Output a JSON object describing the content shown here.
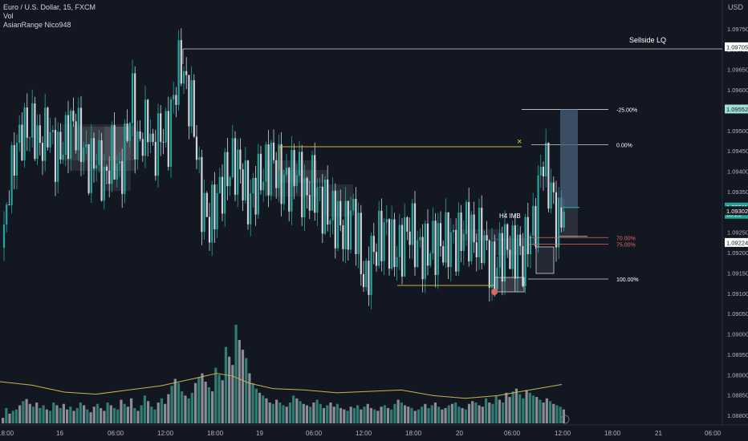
{
  "header": {
    "symbol": "Euro / U.S. Dollar, 15, FXCM",
    "indicator_vol": "Vol",
    "indicator_custom": "AsianRange Nico948",
    "currency": "USD"
  },
  "colors": {
    "background": "#131722",
    "up": "#26a69a",
    "down": "#d1d4dc",
    "axis_text": "#b2b5be",
    "volume_up": "#2e7d74",
    "volume_down": "#8a8d96",
    "volume_ma": "#c8b44f",
    "fib": "#d1d4dc",
    "fib_red": "#e06666",
    "highlight_line": "#c8b44f",
    "tp_box": "#4a6078"
  },
  "chart_data": {
    "type": "candlestick",
    "price_axis": {
      "ylim": [
        1.0879,
        1.0977
      ],
      "ticks": [
        "1.09750",
        "1.09700",
        "1.09650",
        "1.09600",
        "1.09550",
        "1.09500",
        "1.09450",
        "1.09400",
        "1.09350",
        "1.09300",
        "1.09250",
        "1.09200",
        "1.09150",
        "1.09100",
        "1.09050",
        "1.09000",
        "1.08950",
        "1.08900",
        "1.08850",
        "1.08800"
      ],
      "tick_values": [
        1.0975,
        1.097,
        1.0965,
        1.096,
        1.0955,
        1.095,
        1.0945,
        1.094,
        1.0935,
        1.093,
        1.0925,
        1.092,
        1.0915,
        1.091,
        1.0905,
        1.09,
        1.0895,
        1.089,
        1.0885,
        1.088
      ],
      "labels": [
        {
          "text": "1.09705",
          "value": 1.09705,
          "style": "white"
        },
        {
          "text": "1.09552",
          "value": 1.09552,
          "style": "teal"
        },
        {
          "text": "1.09311",
          "sub": "03:25",
          "value": 1.09311,
          "style": "green"
        },
        {
          "text": "1.09302",
          "value": 1.09302,
          "style": "dark"
        },
        {
          "text": "1.09224",
          "value": 1.09224,
          "style": "white"
        }
      ]
    },
    "time_axis": {
      "ticks": [
        "18:00",
        "16",
        "06:00",
        "12:00",
        "18:00",
        "19",
        "06:00",
        "12:00",
        "18:00",
        "20",
        "06:00",
        "12:00",
        "18:00",
        "21",
        "06:00"
      ]
    },
    "close_path": [
      [
        0,
        1.0912
      ],
      [
        10,
        1.0935
      ],
      [
        20,
        1.0946
      ],
      [
        30,
        1.095
      ],
      [
        40,
        1.0951
      ],
      [
        50,
        1.0946
      ],
      [
        60,
        1.0951
      ],
      [
        70,
        1.0943
      ],
      [
        80,
        1.0947
      ],
      [
        90,
        1.0952
      ],
      [
        100,
        1.0948
      ],
      [
        110,
        1.0941
      ],
      [
        120,
        1.0944
      ],
      [
        130,
        1.0937
      ],
      [
        140,
        1.0945
      ],
      [
        150,
        1.0938
      ],
      [
        160,
        1.0952
      ],
      [
        165,
        1.0958
      ],
      [
        170,
        1.0945
      ],
      [
        180,
        1.095
      ],
      [
        185,
        1.0953
      ],
      [
        190,
        1.0943
      ],
      [
        200,
        1.095
      ],
      [
        210,
        1.0948
      ],
      [
        215,
        1.0957
      ],
      [
        220,
        1.0962
      ],
      [
        225,
        1.0968
      ],
      [
        232,
        1.096
      ],
      [
        240,
        1.0955
      ],
      [
        245,
        1.0945
      ],
      [
        250,
        1.0933
      ],
      [
        260,
        1.0927
      ],
      [
        270,
        1.0933
      ],
      [
        280,
        1.0938
      ],
      [
        290,
        1.0942
      ],
      [
        300,
        1.094
      ],
      [
        310,
        1.0932
      ],
      [
        320,
        1.0937
      ],
      [
        330,
        1.094
      ],
      [
        340,
        1.0943
      ],
      [
        350,
        1.0938
      ],
      [
        360,
        1.0937
      ],
      [
        370,
        1.0941
      ],
      [
        380,
        1.0933
      ],
      [
        390,
        1.0937
      ],
      [
        400,
        1.0932
      ],
      [
        410,
        1.093
      ],
      [
        420,
        1.0928
      ],
      [
        430,
        1.0925
      ],
      [
        440,
        1.093
      ],
      [
        445,
        1.0925
      ],
      [
        450,
        1.0918
      ],
      [
        455,
        1.091
      ],
      [
        460,
        1.0918
      ],
      [
        470,
        1.0922
      ],
      [
        480,
        1.0926
      ],
      [
        490,
        1.092
      ],
      [
        500,
        1.0921
      ],
      [
        510,
        1.0927
      ],
      [
        520,
        1.0921
      ],
      [
        530,
        1.092
      ],
      [
        540,
        1.0922
      ],
      [
        550,
        1.0922
      ],
      [
        560,
        1.0923
      ],
      [
        570,
        1.0922
      ],
      [
        580,
        1.0927
      ],
      [
        590,
        1.0923
      ],
      [
        600,
        1.0924
      ],
      [
        610,
        1.0918
      ],
      [
        615,
        1.0914
      ],
      [
        620,
        1.0918
      ],
      [
        630,
        1.0922
      ],
      [
        640,
        1.0919
      ],
      [
        645,
        1.0922
      ],
      [
        650,
        1.0917
      ],
      [
        655,
        1.0922
      ],
      [
        660,
        1.0925
      ],
      [
        665,
        1.0926
      ],
      [
        670,
        1.0932
      ],
      [
        675,
        1.0945
      ],
      [
        680,
        1.094
      ],
      [
        685,
        1.0936
      ],
      [
        690,
        1.0932
      ],
      [
        695,
        1.0925
      ],
      [
        700,
        1.0931
      ],
      [
        703,
        1.0931
      ]
    ],
    "volume": {
      "ylim": [
        0,
        150
      ],
      "bars": [
        8,
        22,
        14,
        18,
        20,
        26,
        32,
        35,
        28,
        24,
        30,
        22,
        26,
        20,
        18,
        30,
        26,
        22,
        28,
        20,
        24,
        18,
        22,
        30,
        26,
        20,
        16,
        24,
        28,
        22,
        18,
        30,
        26,
        22,
        20,
        34,
        28,
        24,
        36,
        22,
        18,
        26,
        40,
        32,
        24,
        20,
        30,
        36,
        28,
        42,
        54,
        64,
        58,
        46,
        40,
        36,
        44,
        58,
        66,
        72,
        60,
        52,
        46,
        80,
        70,
        62,
        110,
        96,
        84,
        142,
        120,
        106,
        94,
        72,
        58,
        50,
        44,
        40,
        36,
        30,
        28,
        34,
        30,
        26,
        24,
        30,
        40,
        36,
        32,
        28,
        26,
        24,
        30,
        34,
        28,
        22,
        26,
        30,
        24,
        28,
        22,
        20,
        18,
        24,
        22,
        26,
        20,
        24,
        28,
        22,
        20,
        18,
        24,
        26,
        22,
        20,
        28,
        34,
        30,
        26,
        24,
        22,
        18,
        20,
        24,
        28,
        22,
        26,
        30,
        24,
        20,
        22,
        26,
        28,
        30,
        24,
        22,
        20,
        28,
        32,
        30,
        26,
        24,
        36,
        30,
        28,
        40,
        34,
        30,
        44,
        38,
        46,
        50,
        42,
        36,
        48,
        44,
        40,
        38,
        34,
        30,
        36,
        32,
        28,
        26,
        24,
        20
      ],
      "ma": [
        [
          0,
          60
        ],
        [
          40,
          55
        ],
        [
          80,
          45
        ],
        [
          120,
          42
        ],
        [
          160,
          48
        ],
        [
          200,
          54
        ],
        [
          240,
          64
        ],
        [
          270,
          72
        ],
        [
          290,
          68
        ],
        [
          310,
          58
        ],
        [
          340,
          50
        ],
        [
          380,
          48
        ],
        [
          420,
          44
        ],
        [
          460,
          46
        ],
        [
          500,
          48
        ],
        [
          540,
          40
        ],
        [
          580,
          36
        ],
        [
          620,
          40
        ],
        [
          660,
          48
        ],
        [
          700,
          56
        ]
      ]
    },
    "annotations": {
      "sellside": "Sellside LQ",
      "h4": "H4 IMB",
      "x_mark": "×",
      "fib_labels": [
        "-25.00%",
        "0.00%",
        "70.00%",
        "75.00%",
        "100.00%"
      ],
      "fib_values": [
        1.09552,
        1.09465,
        1.09237,
        1.09221,
        1.09135
      ]
    }
  }
}
